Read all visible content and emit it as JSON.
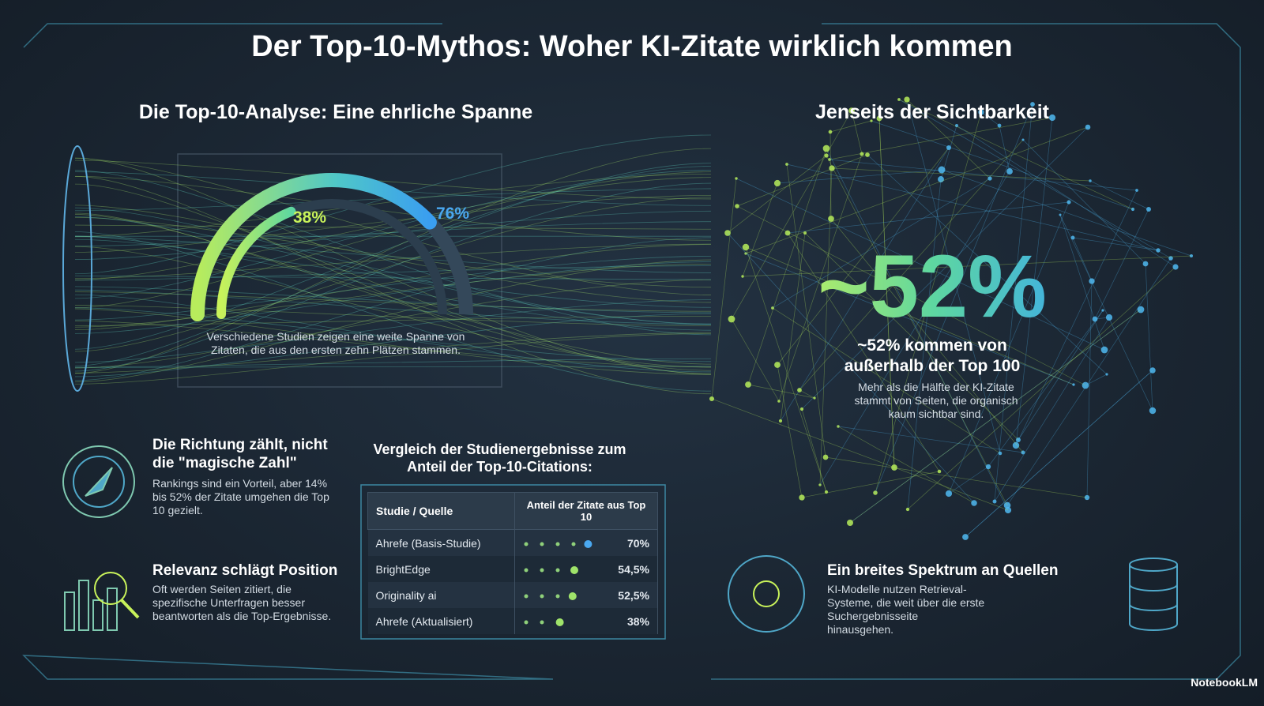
{
  "header": {
    "title": "Der Top-10-Mythos: Woher KI-Zitate wirklich kommen"
  },
  "range": {
    "heading": "Die Top-10-Analyse: Eine ehrliche Spanne",
    "low": {
      "value": 38,
      "label": "38%"
    },
    "high": {
      "value": 76,
      "label": "76%"
    },
    "caption": "Verschiedene Studien zeigen eine weite Spanne von Zitaten, die aus den ersten zehn Plätzen stammen."
  },
  "beyond": {
    "heading": "Jenseits der Sichtbarkeit",
    "big": "~52%",
    "subheading": "~52% kommen von außerhalb der Top 100",
    "body": "Mehr als die Hälfte der KI-Zitate stammt von Seiten, die organisch kaum sichtbar sind."
  },
  "features": [
    {
      "title": "Die Richtung zählt, nicht die \"magische Zahl\"",
      "body": "Rankings sind ein Vorteil, aber 14% bis 52% der Zitate umgehen die Top 10 gezielt."
    },
    {
      "title": "Relevanz schlägt Position",
      "body": "Oft werden Seiten zitiert, die spezifische Unterfragen besser beantworten als die Top-Ergebnisse."
    },
    {
      "title": "Ein breites Spektrum an Quellen",
      "body": "KI-Modelle nutzen Retrieval-Systeme, die weit über die erste Suchergebnisseite hinausgehen."
    }
  ],
  "table": {
    "title": "Vergleich der Studienergebnisse zum Anteil der Top-10-Citations:",
    "headers": [
      "Studie / Quelle",
      "Anteil der Zitate aus Top 10"
    ],
    "rows": [
      {
        "source": "Ahrefe (Basis-Studie)",
        "share": {
          "value": 70,
          "label": "70%"
        }
      },
      {
        "source": "BrightEdge",
        "share": {
          "value": 54.5,
          "label": "54,5%"
        }
      },
      {
        "source": "Originality ai",
        "share": {
          "value": 52.5,
          "label": "52,5%"
        }
      },
      {
        "source": "Ahrefe (Aktualisiert)",
        "share": {
          "value": 38,
          "label": "38%"
        }
      }
    ]
  },
  "footer": {
    "brand": "NotebookLM"
  }
}
